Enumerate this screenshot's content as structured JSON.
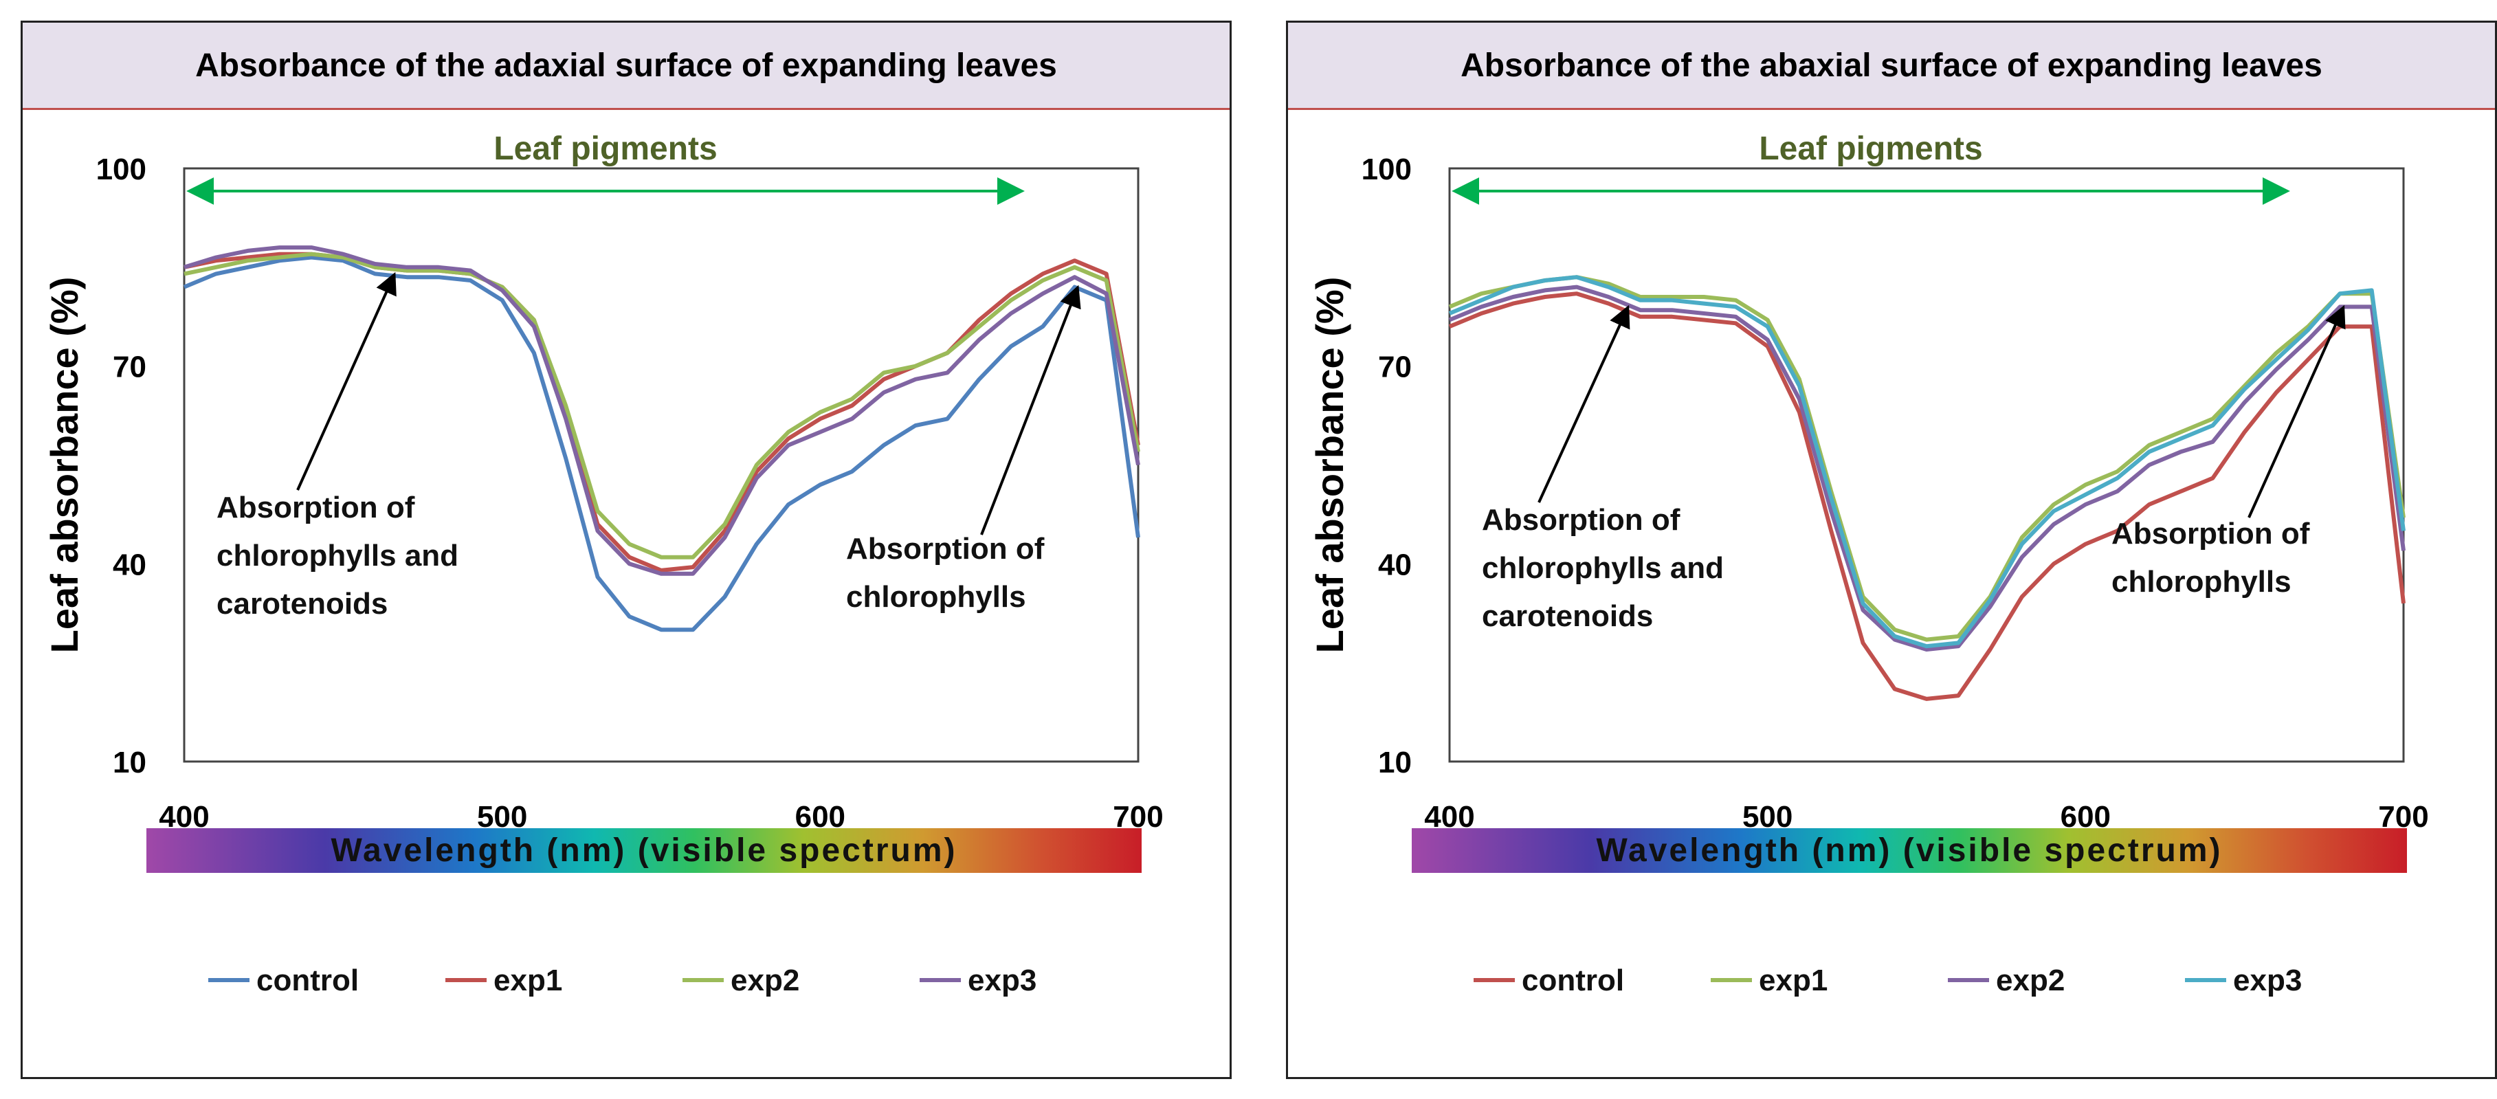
{
  "chart_data": [
    {
      "type": "line",
      "title": "Absorbance of the adaxial surface of expanding leaves",
      "ylabel": "Leaf absorbance (%)",
      "xlabel": "Wavelength (nm) (visible spectrum)",
      "ylim": [
        10,
        100
      ],
      "xlim": [
        400,
        700
      ],
      "yticks": [
        "10",
        "40",
        "70",
        "100"
      ],
      "xticks": [
        "400",
        "500",
        "600",
        "700"
      ],
      "band_label": "Leaf pigments",
      "band_range": [
        405,
        660
      ],
      "annotations": [
        {
          "text_lines": [
            "Absorption of",
            "chlorophylls and",
            "carotenoids"
          ],
          "target": [
            465,
            84
          ]
        },
        {
          "text_lines": [
            "Absorption of",
            "chlorophylls"
          ],
          "target": [
            680,
            82
          ]
        }
      ],
      "legend_position": "bottom",
      "x": [
        400,
        410,
        420,
        430,
        440,
        450,
        460,
        470,
        480,
        490,
        500,
        510,
        520,
        530,
        540,
        550,
        560,
        570,
        580,
        590,
        600,
        610,
        620,
        630,
        640,
        650,
        660,
        670,
        680,
        690,
        700
      ],
      "series": [
        {
          "name": "control",
          "color": "#4f81bd",
          "values": [
            82,
            84,
            85,
            86,
            86.5,
            86,
            84,
            83.5,
            83.5,
            83,
            80,
            72,
            56,
            38,
            32,
            30,
            30,
            35,
            43,
            49,
            52,
            54,
            58,
            61,
            62,
            68,
            73,
            76,
            82,
            80,
            44
          ]
        },
        {
          "name": "exp1",
          "color": "#c0504d",
          "values": [
            85,
            86,
            86.5,
            87,
            87,
            86.5,
            85,
            84.5,
            84.5,
            84,
            82,
            77,
            63,
            46,
            41,
            39,
            39.5,
            45,
            54,
            59,
            62,
            64,
            68,
            70,
            72,
            77,
            81,
            84,
            86,
            84,
            58
          ]
        },
        {
          "name": "exp2",
          "color": "#9bbb59",
          "values": [
            84,
            85,
            86,
            86.5,
            87,
            86.5,
            85,
            84.5,
            84.5,
            84,
            82,
            77,
            64,
            48,
            43,
            41,
            41,
            46,
            55,
            60,
            63,
            65,
            69,
            70,
            72,
            76,
            80,
            83,
            85,
            83,
            57
          ]
        },
        {
          "name": "exp3",
          "color": "#8064a2",
          "values": [
            85,
            86.5,
            87.5,
            88,
            88,
            87,
            85.5,
            85,
            85,
            84.5,
            81.5,
            76,
            62,
            45,
            40,
            38.5,
            38.5,
            44,
            53,
            58,
            60,
            62,
            66,
            68,
            69,
            74,
            78,
            81,
            83.5,
            81,
            55
          ]
        }
      ]
    },
    {
      "type": "line",
      "title": "Absorbance of the abaxial surface of expanding leaves",
      "ylabel": "Leaf absorbance (%)",
      "xlabel": "Wavelength (nm) (visible spectrum)",
      "ylim": [
        10,
        100
      ],
      "xlim": [
        400,
        700
      ],
      "yticks": [
        "10",
        "40",
        "70",
        "100"
      ],
      "xticks": [
        "400",
        "500",
        "600",
        "700"
      ],
      "band_label": "Leaf pigments",
      "band_range": [
        405,
        660
      ],
      "annotations": [
        {
          "text_lines": [
            "Absorption of",
            "chlorophylls and",
            "carotenoids"
          ],
          "target": [
            455,
            79
          ]
        },
        {
          "text_lines": [
            "Absorption of",
            "chlorophylls"
          ],
          "target": [
            680,
            79
          ]
        }
      ],
      "legend_position": "bottom",
      "x": [
        400,
        410,
        420,
        430,
        440,
        450,
        460,
        470,
        480,
        490,
        500,
        510,
        520,
        530,
        540,
        550,
        560,
        570,
        580,
        590,
        600,
        610,
        620,
        630,
        640,
        650,
        660,
        670,
        680,
        690,
        700
      ],
      "series": [
        {
          "name": "control",
          "color": "#c0504d",
          "values": [
            76,
            78,
            79.5,
            80.5,
            81,
            79.5,
            77.5,
            77.5,
            77,
            76.5,
            73,
            63,
            45,
            28,
            21,
            19.5,
            20,
            27,
            35,
            40,
            43,
            45,
            49,
            51,
            53,
            60,
            66,
            71,
            76,
            76,
            34
          ]
        },
        {
          "name": "exp1",
          "color": "#9bbb59",
          "values": [
            79,
            81,
            82,
            83,
            83.5,
            82.5,
            80.5,
            80.5,
            80.5,
            80,
            77,
            68,
            51,
            35,
            30,
            28.5,
            29,
            35,
            44,
            49,
            52,
            54,
            58,
            60,
            62,
            67,
            72,
            76,
            81,
            81,
            47
          ]
        },
        {
          "name": "exp2",
          "color": "#8064a2",
          "values": [
            77,
            79,
            80.5,
            81.5,
            82,
            80.5,
            78.5,
            78.5,
            78,
            77.5,
            74,
            65,
            48,
            33,
            28.5,
            27,
            27.5,
            33.5,
            41,
            46,
            49,
            51,
            55,
            57,
            58.5,
            64.5,
            69.5,
            74,
            79,
            79,
            42
          ]
        },
        {
          "name": "exp3",
          "color": "#4bacc6",
          "values": [
            78,
            80,
            82,
            83,
            83.5,
            82,
            80,
            80,
            79.5,
            79,
            76,
            67,
            50,
            34,
            29,
            27.5,
            28,
            34.5,
            43,
            48,
            50.5,
            53,
            57,
            59,
            61,
            66.5,
            71,
            75.5,
            81,
            81.5,
            45
          ]
        }
      ]
    }
  ]
}
